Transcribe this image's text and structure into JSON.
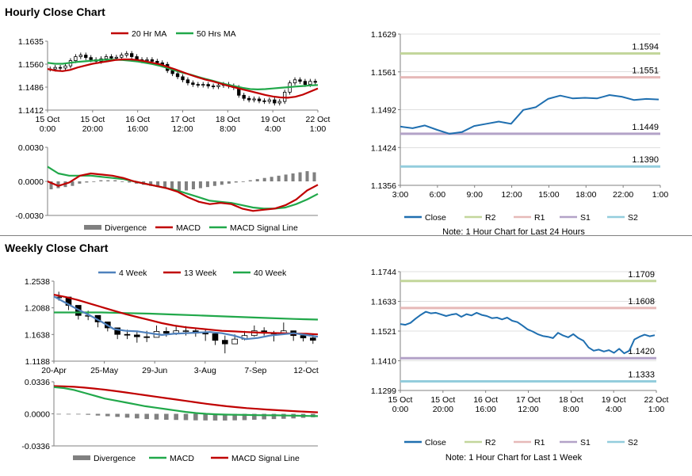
{
  "sections": {
    "hourly_title": "Hourly Close Chart",
    "weekly_title": "Weekly Close Chart"
  },
  "colors": {
    "ma_short": "#c00000",
    "ma_long": "#21a84a",
    "ma_4wk": "#4f81bd",
    "close": "#1f6fb0",
    "r2": "#c3d69b",
    "r1": "#e6b9b8",
    "s1": "#b3a2c7",
    "s2": "#93cddd",
    "divergence": "#808080",
    "gridline": "#bfbfbf"
  },
  "chart_data": [
    {
      "id": "hourly_price",
      "type": "candlestick",
      "title": "",
      "legend": [
        "20 Hr MA",
        "50 Hrs MA"
      ],
      "y_ticks": [
        "1.1635",
        "1.1560",
        "1.1486",
        "1.1412"
      ],
      "ylim": [
        1.1412,
        1.1635
      ],
      "x_ticks": [
        [
          "15 Oct",
          "0:00"
        ],
        [
          "15 Oct",
          "20:00"
        ],
        [
          "16 Oct",
          "16:00"
        ],
        [
          "17 Oct",
          "12:00"
        ],
        [
          "18 Oct",
          "8:00"
        ],
        [
          "19 Oct",
          "4:00"
        ],
        [
          "22 Oct",
          "1:00"
        ]
      ],
      "close": [
        1.1545,
        1.155,
        1.1548,
        1.1555,
        1.1572,
        1.1585,
        1.159,
        1.1582,
        1.1575,
        1.157,
        1.1578,
        1.1585,
        1.158,
        1.1583,
        1.159,
        1.1595,
        1.1585,
        1.1575,
        1.1572,
        1.1575,
        1.157,
        1.1565,
        1.156,
        1.154,
        1.153,
        1.152,
        1.151,
        1.15,
        1.1495,
        1.1493,
        1.1495,
        1.149,
        1.1488,
        1.1492,
        1.1495,
        1.149,
        1.1485,
        1.146,
        1.145,
        1.1445,
        1.1448,
        1.1442,
        1.144,
        1.1445,
        1.1435,
        1.144,
        1.147,
        1.15,
        1.151,
        1.1505,
        1.1495,
        1.1505,
        1.1502
      ],
      "ma20": [
        1.1545,
        1.154,
        1.1538,
        1.1542,
        1.155,
        1.1556,
        1.1562,
        1.1566,
        1.157,
        1.1574,
        1.1576,
        1.1576,
        1.1574,
        1.157,
        1.1565,
        1.156,
        1.1552,
        1.1544,
        1.1535,
        1.1526,
        1.1518,
        1.1511,
        1.1505,
        1.1498,
        1.1491,
        1.1485,
        1.1479,
        1.1473,
        1.1467,
        1.1461,
        1.1456,
        1.1453,
        1.1452,
        1.1455,
        1.1462,
        1.1472,
        1.1482
      ],
      "ma50": [
        1.1565,
        1.1562,
        1.1562,
        1.1565,
        1.1568,
        1.157,
        1.1572,
        1.1574,
        1.1575,
        1.1575,
        1.1574,
        1.1572,
        1.1569,
        1.1565,
        1.1561,
        1.1555,
        1.1548,
        1.154,
        1.1533,
        1.1527,
        1.152,
        1.1513,
        1.1507,
        1.15,
        1.1494,
        1.1489,
        1.1484,
        1.148,
        1.1479,
        1.148,
        1.1482,
        1.1484,
        1.1486,
        1.1488,
        1.149,
        1.1492,
        1.1493
      ]
    },
    {
      "id": "hourly_macd",
      "type": "macd",
      "legend": [
        "Divergence",
        "MACD",
        "MACD Signal Line"
      ],
      "y_ticks": [
        "0.0030",
        "0.0000",
        "-0.0030"
      ],
      "ylim": [
        -0.003,
        0.003
      ],
      "divergence": [
        -0.0007,
        -0.0006,
        -0.0005,
        -0.0004,
        -0.0002,
        -0.0001,
        0.0,
        0.0001,
        0.0001,
        0.0001,
        0.0,
        -0.0001,
        -0.0002,
        -0.0003,
        -0.0004,
        -0.0005,
        -0.0006,
        -0.0007,
        -0.0008,
        -0.0008,
        -0.0007,
        -0.0006,
        -0.0005,
        -0.0004,
        -0.0003,
        -0.0002,
        -0.0001,
        0.0,
        0.0001,
        0.0002,
        0.0003,
        0.0004,
        0.0005,
        0.0006,
        0.0007,
        0.0008,
        0.0009,
        0.0008
      ],
      "macd": [
        0.0,
        -0.0004,
        -0.0001,
        0.0005,
        0.0007,
        0.0006,
        0.0005,
        0.0003,
        0.0,
        -0.0002,
        -0.0004,
        -0.0006,
        -0.0009,
        -0.0014,
        -0.0018,
        -0.002,
        -0.0019,
        -0.002,
        -0.0024,
        -0.0026,
        -0.0025,
        -0.0024,
        -0.0021,
        -0.0016,
        -0.0008,
        -0.0003
      ],
      "signal": [
        0.0013,
        0.0007,
        0.0005,
        0.0005,
        0.0005,
        0.0004,
        0.0003,
        0.0002,
        0.0,
        -0.0002,
        -0.0004,
        -0.0006,
        -0.0008,
        -0.0011,
        -0.0014,
        -0.0017,
        -0.0018,
        -0.0019,
        -0.0021,
        -0.0023,
        -0.0024,
        -0.0024,
        -0.0023,
        -0.002,
        -0.0016,
        -0.0011
      ]
    },
    {
      "id": "hourly_pivots",
      "type": "line",
      "note": "Note: 1 Hour Chart for Last 24 Hours",
      "legend": [
        "Close",
        "R2",
        "R1",
        "S1",
        "S2"
      ],
      "y_ticks": [
        "1.1629",
        "1.1561",
        "1.1492",
        "1.1424",
        "1.1356"
      ],
      "ylim": [
        1.1356,
        1.1629
      ],
      "x_ticks": [
        "3:00",
        "6:00",
        "9:00",
        "12:00",
        "15:00",
        "18:00",
        "22:00",
        "1:00"
      ],
      "levels": [
        {
          "name": "R2",
          "value": 1.1594,
          "label": "1.1594"
        },
        {
          "name": "R1",
          "value": 1.1551,
          "label": "1.1551"
        },
        {
          "name": "S1",
          "value": 1.1449,
          "label": "1.1449"
        },
        {
          "name": "S2",
          "value": 1.139,
          "label": "1.1390"
        }
      ],
      "close": [
        1.1462,
        1.1459,
        1.1464,
        1.1456,
        1.1449,
        1.1452,
        1.1463,
        1.1467,
        1.1471,
        1.1467,
        1.1492,
        1.1497,
        1.1512,
        1.1518,
        1.1513,
        1.1514,
        1.1513,
        1.1519,
        1.1516,
        1.151,
        1.1512,
        1.1511
      ]
    },
    {
      "id": "weekly_price",
      "type": "candlestick",
      "legend": [
        "4 Week",
        "13 Week",
        "40 Week"
      ],
      "y_ticks": [
        "1.2538",
        "1.2088",
        "1.1638",
        "1.1188"
      ],
      "ylim": [
        1.1188,
        1.2538
      ],
      "x_ticks": [
        "20-Apr",
        "25-May",
        "29-Jun",
        "3-Aug",
        "7-Sep",
        "12-Oct"
      ],
      "close": [
        1.227,
        1.213,
        1.196,
        1.196,
        1.185,
        1.175,
        1.164,
        1.163,
        1.16,
        1.159,
        1.169,
        1.166,
        1.17,
        1.17,
        1.166,
        1.165,
        1.154,
        1.148,
        1.156,
        1.162,
        1.17,
        1.166,
        1.165,
        1.17,
        1.162,
        1.158,
        1.154
      ],
      "ma4": [
        1.228,
        1.217,
        1.206,
        1.196,
        1.185,
        1.173,
        1.17,
        1.169,
        1.166,
        1.163,
        1.165,
        1.166,
        1.167,
        1.168,
        1.166,
        1.162,
        1.156,
        1.158,
        1.162,
        1.164,
        1.166,
        1.163,
        1.16
      ],
      "ma13": [
        1.231,
        1.227,
        1.222,
        1.216,
        1.21,
        1.204,
        1.198,
        1.193,
        1.188,
        1.183,
        1.179,
        1.176,
        1.174,
        1.172,
        1.17,
        1.169,
        1.168,
        1.167,
        1.1665,
        1.166,
        1.1655,
        1.165,
        1.164
      ],
      "ma40": [
        1.201,
        1.201,
        1.201,
        1.2,
        1.199,
        1.1975,
        1.196,
        1.1945,
        1.193,
        1.1915,
        1.19,
        1.189
      ],
      "wick_low": [
        1.221,
        1.205,
        1.189,
        1.188,
        1.176,
        1.169,
        1.156,
        1.156,
        1.15,
        1.151,
        1.161,
        1.16,
        1.163,
        1.162,
        1.16,
        1.153,
        1.146,
        1.132,
        1.15,
        1.154,
        1.16,
        1.162,
        1.152,
        1.164,
        1.153,
        1.152,
        1.148
      ],
      "wick_high": [
        1.236,
        1.224,
        1.205,
        1.204,
        1.196,
        1.184,
        1.174,
        1.172,
        1.17,
        1.17,
        1.179,
        1.176,
        1.179,
        1.178,
        1.173,
        1.172,
        1.165,
        1.162,
        1.164,
        1.17,
        1.179,
        1.176,
        1.17,
        1.184,
        1.17,
        1.166,
        1.164
      ]
    },
    {
      "id": "weekly_macd",
      "type": "macd",
      "legend": [
        "Divergence",
        "MACD",
        "MACD Signal Line"
      ],
      "y_ticks": [
        "0.0336",
        "0.0000",
        "-0.0336"
      ],
      "ylim": [
        -0.0336,
        0.0336
      ],
      "divergence": [
        0.0,
        0.0,
        -0.0005,
        -0.001,
        -0.0018,
        -0.0025,
        -0.0032,
        -0.004,
        -0.0048,
        -0.0055,
        -0.006,
        -0.0062,
        -0.0064,
        -0.0066,
        -0.0068,
        -0.0069,
        -0.007,
        -0.007,
        -0.0068,
        -0.0066,
        -0.0062,
        -0.0058,
        -0.0055,
        -0.0052,
        -0.0048,
        -0.0042,
        -0.0036
      ],
      "macd": [
        0.028,
        0.027,
        0.025,
        0.022,
        0.019,
        0.016,
        0.014,
        0.012,
        0.01,
        0.008,
        0.0065,
        0.005,
        0.0035,
        0.002,
        0.0008,
        0.0,
        -0.0005,
        -0.0008,
        -0.001,
        -0.0012,
        -0.0014,
        -0.0015,
        -0.0016,
        -0.0018,
        -0.002,
        -0.0022,
        -0.0024
      ],
      "signal": [
        0.029,
        0.0288,
        0.0283,
        0.0275,
        0.0265,
        0.0253,
        0.024,
        0.0225,
        0.021,
        0.0195,
        0.018,
        0.0165,
        0.015,
        0.0135,
        0.012,
        0.0105,
        0.0092,
        0.008,
        0.007,
        0.006,
        0.0052,
        0.0045,
        0.0038,
        0.0032,
        0.0026,
        0.0021,
        0.0016
      ]
    },
    {
      "id": "weekly_pivots",
      "type": "line",
      "note": "Note: 1 Hour Chart for Last 1 Week",
      "legend": [
        "Close",
        "R2",
        "R1",
        "S1",
        "S2"
      ],
      "y_ticks": [
        "1.1744",
        "1.1633",
        "1.1521",
        "1.1410",
        "1.1299"
      ],
      "ylim": [
        1.1299,
        1.1744
      ],
      "x_ticks": [
        [
          "15 Oct",
          "0:00"
        ],
        [
          "15 Oct",
          "20:00"
        ],
        [
          "16 Oct",
          "16:00"
        ],
        [
          "17 Oct",
          "12:00"
        ],
        [
          "18 Oct",
          "8:00"
        ],
        [
          "19 Oct",
          "4:00"
        ],
        [
          "22 Oct",
          "1:00"
        ]
      ],
      "levels": [
        {
          "name": "R2",
          "value": 1.1709,
          "label": "1.1709"
        },
        {
          "name": "R1",
          "value": 1.1608,
          "label": "1.1608"
        },
        {
          "name": "S1",
          "value": 1.142,
          "label": "1.1420"
        },
        {
          "name": "S2",
          "value": 1.1333,
          "label": "1.1333"
        }
      ],
      "close": [
        1.1548,
        1.1545,
        1.1552,
        1.1568,
        1.1582,
        1.1594,
        1.1588,
        1.159,
        1.1584,
        1.1578,
        1.1583,
        1.1586,
        1.1575,
        1.1585,
        1.158,
        1.159,
        1.1582,
        1.1578,
        1.157,
        1.1572,
        1.1565,
        1.1572,
        1.156,
        1.1555,
        1.1542,
        1.1528,
        1.152,
        1.151,
        1.1503,
        1.15,
        1.1495,
        1.1515,
        1.1505,
        1.1498,
        1.151,
        1.1495,
        1.1485,
        1.146,
        1.1448,
        1.1452,
        1.1445,
        1.145,
        1.144,
        1.1455,
        1.1438,
        1.1448,
        1.149,
        1.15,
        1.1508,
        1.1502,
        1.1506
      ]
    }
  ]
}
